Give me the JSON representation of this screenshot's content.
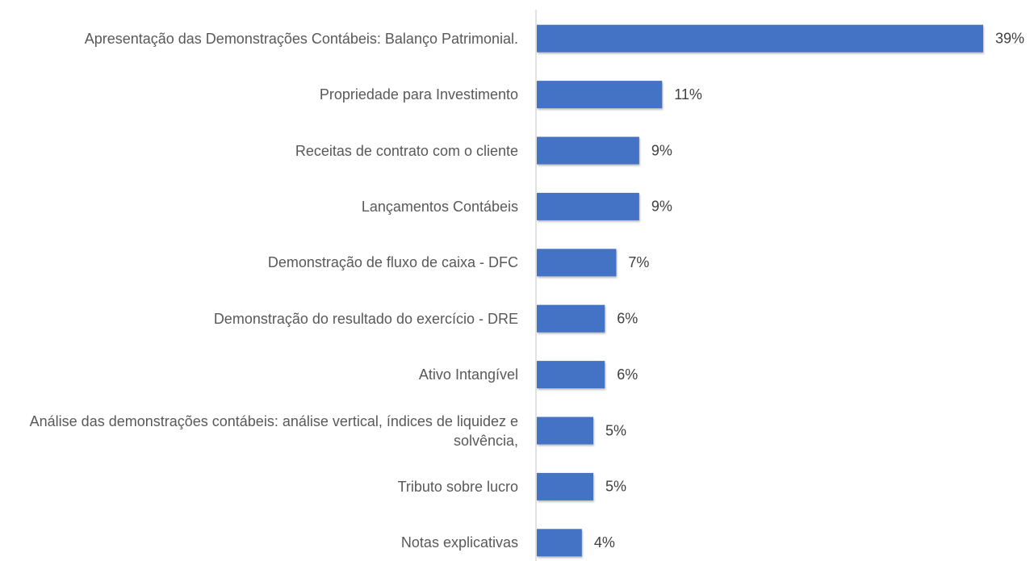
{
  "chart_data": {
    "type": "bar",
    "orientation": "horizontal",
    "color": "#4472c4",
    "categories": [
      "Apresentação das Demonstrações Contábeis: Balanço Patrimonial.",
      "Propriedade para Investimento",
      "Receitas de contrato com o cliente",
      "Lançamentos Contábeis",
      "Demonstração de fluxo de caixa - DFC",
      "Demonstração do resultado do exercício - DRE",
      "Ativo Intangível",
      "Análise das demonstrações contábeis: análise vertical, índices de liquidez e solvência,",
      "Tributo sobre lucro",
      "Notas explicativas"
    ],
    "values": [
      39,
      11,
      9,
      9,
      7,
      6,
      6,
      5,
      5,
      4
    ],
    "value_labels": [
      "39%",
      "11%",
      "9%",
      "9%",
      "7%",
      "6%",
      "6%",
      "5%",
      "5%",
      "4%"
    ]
  }
}
